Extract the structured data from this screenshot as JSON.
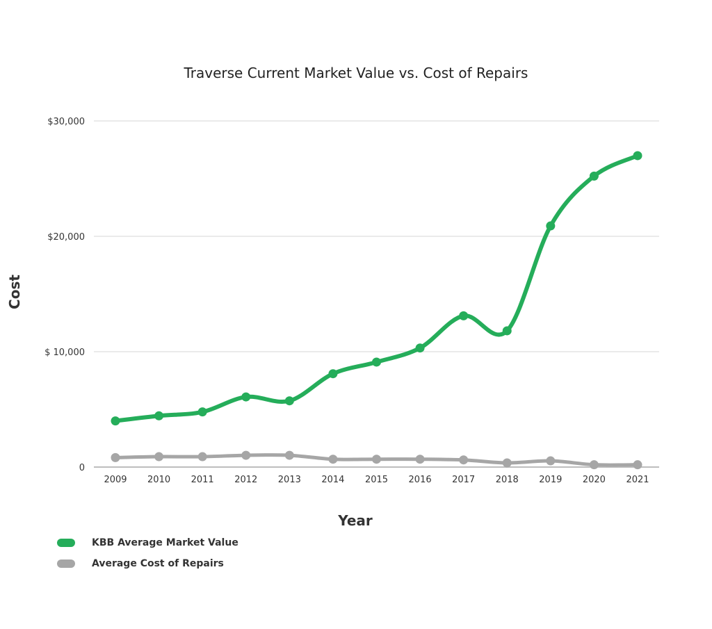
{
  "chart_data": {
    "type": "line",
    "title": "Traverse Current Market Value vs. Cost of Repairs",
    "xlabel": "Year",
    "ylabel": "Cost",
    "categories": [
      "2009",
      "2010",
      "2011",
      "2012",
      "2013",
      "2014",
      "2015",
      "2016",
      "2017",
      "2018",
      "2019",
      "2020",
      "2021"
    ],
    "ylim": [
      0,
      30000
    ],
    "yticks": [
      {
        "value": 0,
        "label": "0"
      },
      {
        "value": 10000,
        "label": "$ 10,000"
      },
      {
        "value": 20000,
        "label": "$20,000"
      },
      {
        "value": 30000,
        "label": "$30,000"
      }
    ],
    "grid": true,
    "smooth": true,
    "legend_position": "bottom-left",
    "series": [
      {
        "name": "KBB Average Market Value",
        "color": "#25ad5a",
        "values": [
          4000,
          4440,
          4780,
          6080,
          5740,
          8090,
          9100,
          10320,
          13110,
          11810,
          20900,
          25220,
          26990
        ]
      },
      {
        "name": "Average Cost of Repairs",
        "color": "#a6a6a6",
        "values": [
          820,
          900,
          900,
          1020,
          1020,
          680,
          680,
          680,
          620,
          360,
          540,
          200,
          200
        ]
      }
    ]
  }
}
